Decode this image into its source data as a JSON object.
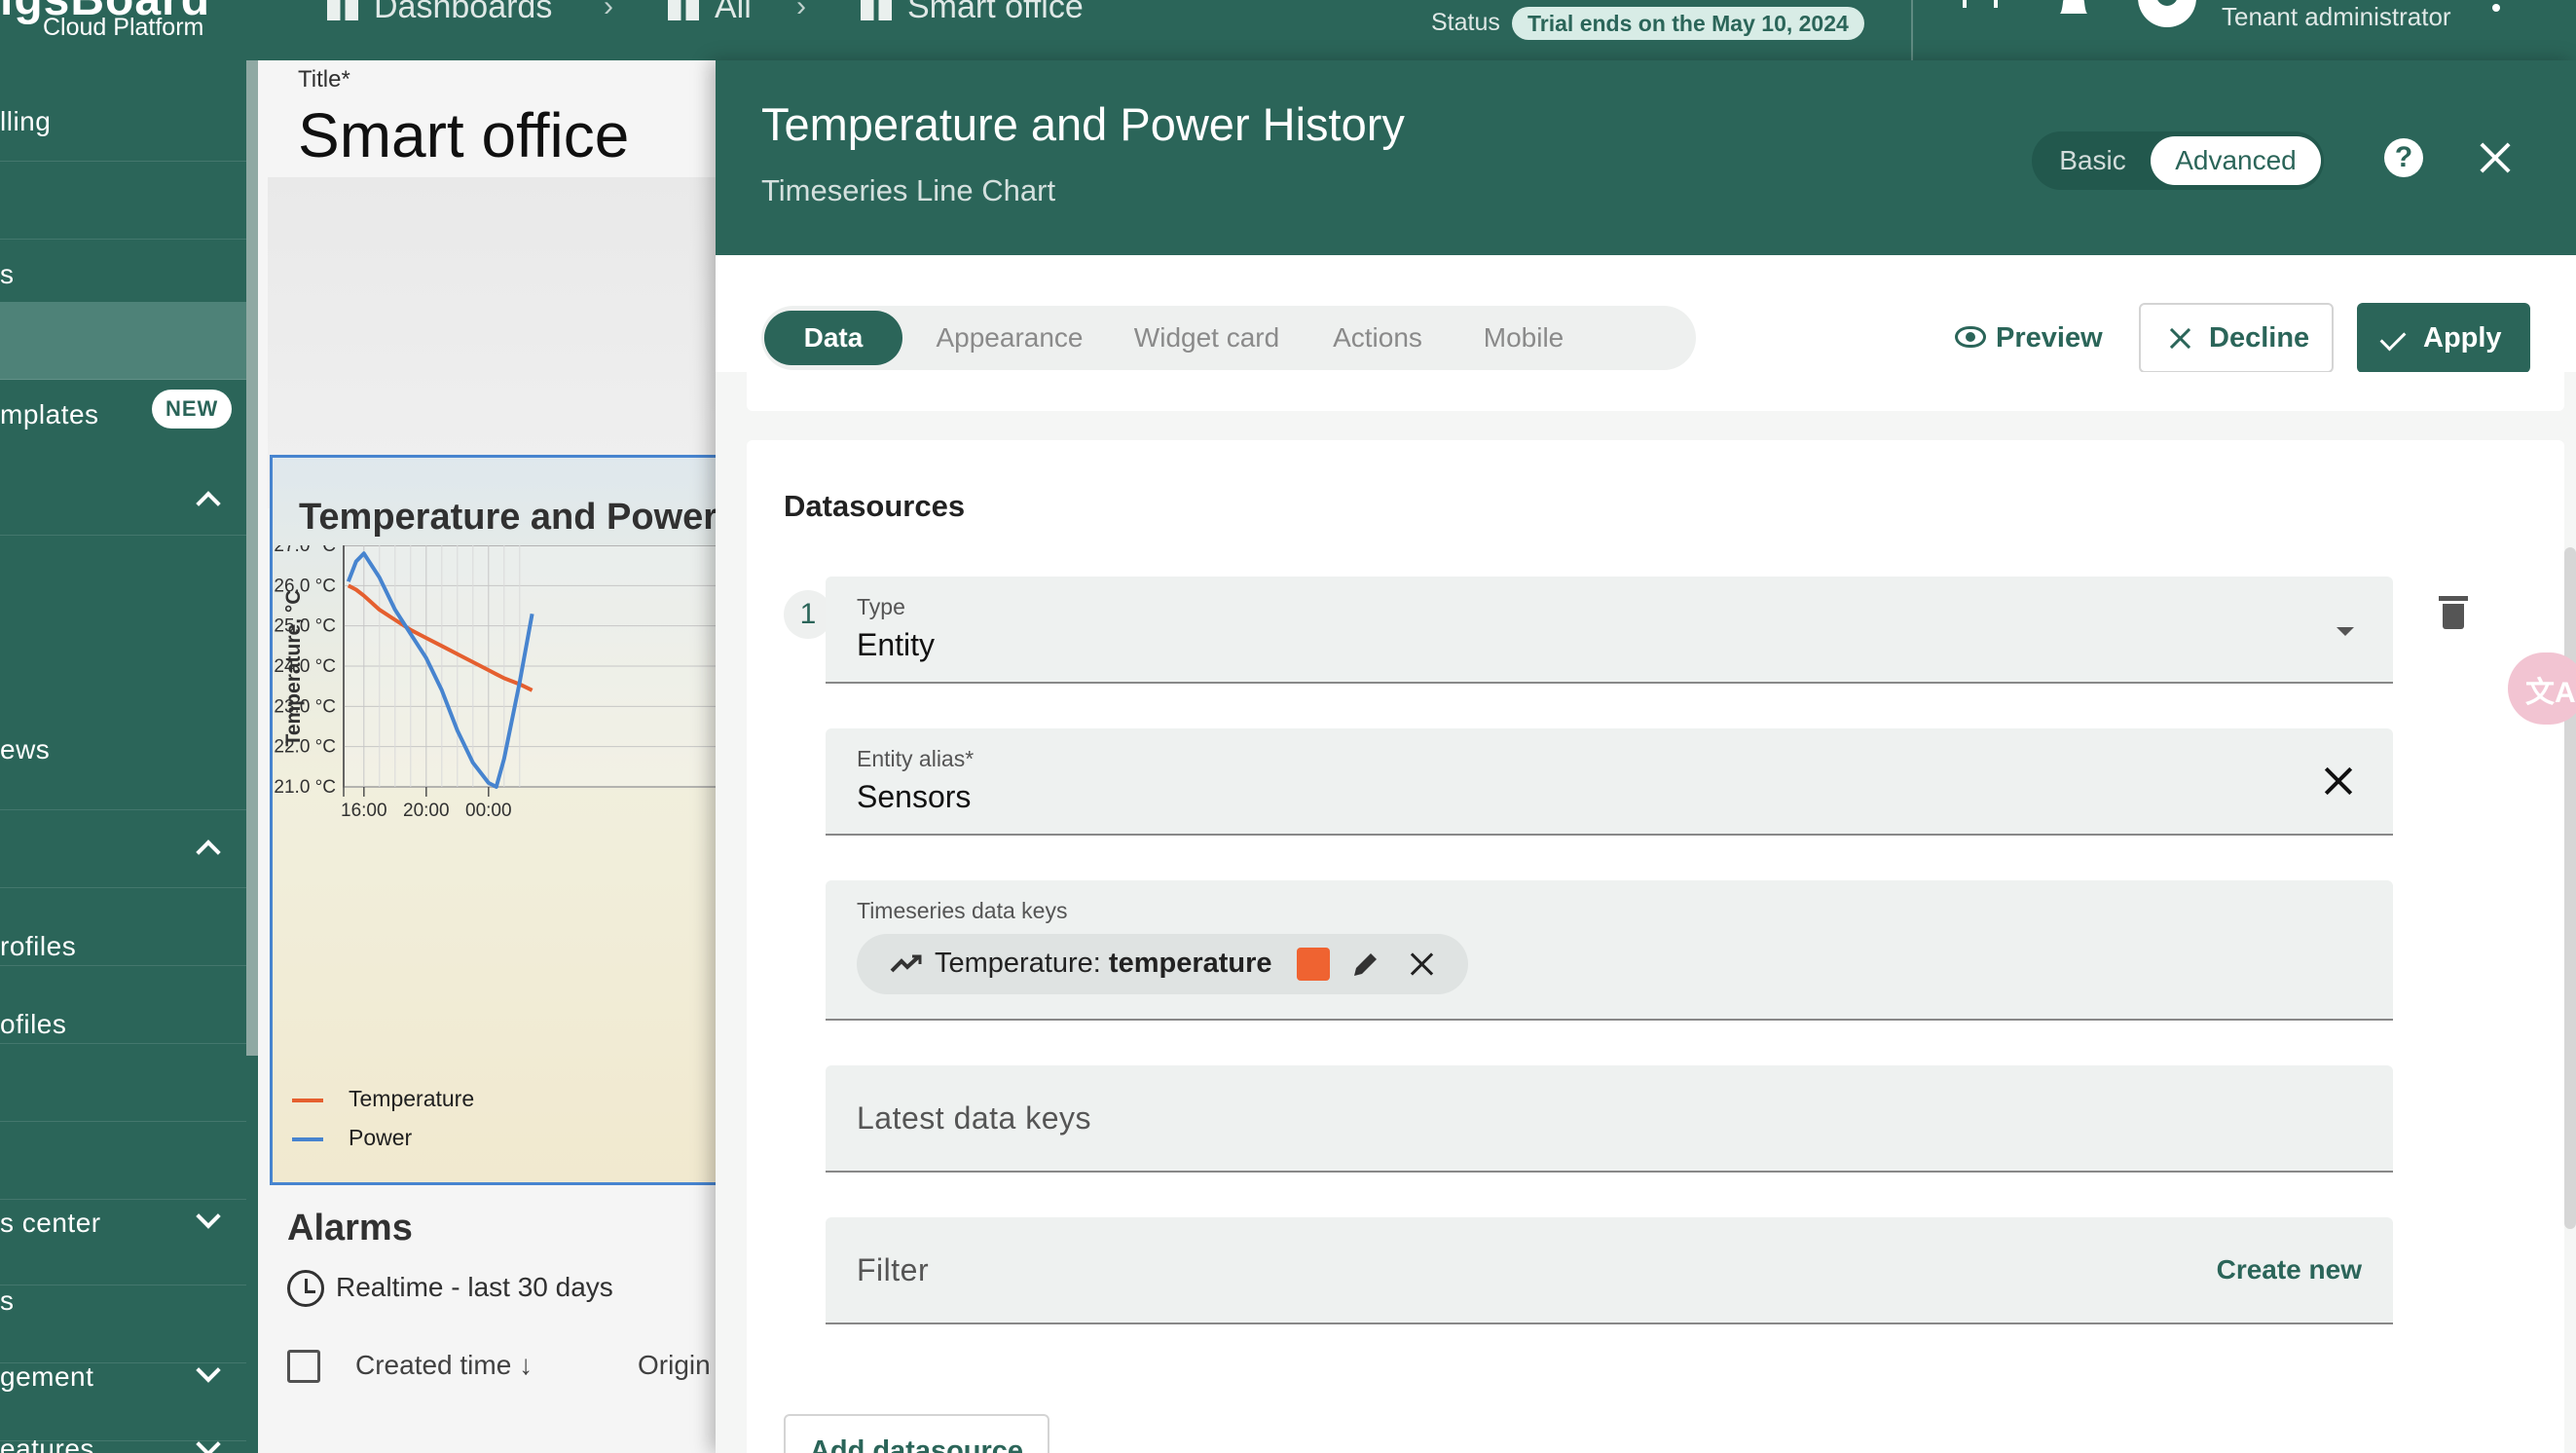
{
  "topbar": {
    "brand_text": "igsBoard",
    "brand_sub": "Cloud Platform",
    "breadcrumbs": [
      "Dashboards",
      "All",
      "Smart office"
    ],
    "status_label": "Status",
    "trial_badge": "Trial ends on the May 10, 2024",
    "user_role": "Tenant administrator",
    "icons": [
      "fullscreen-icon",
      "bell-icon",
      "account-icon",
      "more-vert-icon"
    ]
  },
  "sidebar": {
    "items": [
      {
        "label": "lling"
      },
      {
        "label": ""
      },
      {
        "label": "s"
      },
      {
        "label": "mplates",
        "badge": "NEW"
      },
      {
        "label": ""
      },
      {
        "label": ""
      },
      {
        "label": "ews"
      },
      {
        "label": ""
      },
      {
        "label": "rofiles"
      },
      {
        "label": "ofiles"
      },
      {
        "label": ""
      },
      {
        "label": ""
      },
      {
        "label": "s center"
      },
      {
        "label": "s"
      },
      {
        "label": "gement"
      },
      {
        "label": "eatures"
      }
    ],
    "new_badge": "NEW"
  },
  "dashboard": {
    "title_label": "Title*",
    "title": "Smart office",
    "widget_title": "Temperature and Power",
    "alarms_title": "Alarms",
    "realtime": "Realtime - last 30 days",
    "col_created": "Created time",
    "col_origin": "Origin",
    "legend": [
      {
        "name": "Temperature",
        "color": "#ef6331"
      },
      {
        "name": "Power",
        "color": "#4a8ad8"
      }
    ]
  },
  "chart_data": {
    "type": "line",
    "title": "Temperature and Power",
    "ylabel": "Temperature, °C",
    "y_ticks": [
      "27.0 °C",
      "26.0 °C",
      "25.0 °C",
      "24.0 °C",
      "23.0 °C",
      "22.0 °C",
      "21.0 °C"
    ],
    "x_ticks": [
      "16:00",
      "20:00",
      "00:00"
    ],
    "ylim": [
      21.0,
      27.0
    ],
    "x_hours": [
      15.0,
      15.5,
      16.0,
      17.0,
      18.0,
      19.0,
      20.0,
      21.0,
      22.0,
      23.0,
      24.0,
      24.5,
      25.0,
      26.0,
      26.8
    ],
    "series": [
      {
        "name": "Temperature",
        "color": "#ef6331",
        "values": [
          26.0,
          25.9,
          25.75,
          25.4,
          25.15,
          24.9,
          24.7,
          24.5,
          24.3,
          24.1,
          23.9,
          23.8,
          23.7,
          23.55,
          23.4
        ]
      },
      {
        "name": "Power",
        "color": "#4a8ad8",
        "values": [
          26.1,
          26.6,
          26.8,
          26.2,
          25.4,
          24.8,
          24.2,
          23.4,
          22.4,
          21.6,
          21.1,
          21.0,
          21.7,
          23.6,
          25.3
        ]
      }
    ],
    "grid": true,
    "legend_position": "bottom-left"
  },
  "editor": {
    "title": "Temperature and Power History",
    "subtitle": "Timeseries Line Chart",
    "mode_basic": "Basic",
    "mode_advanced": "Advanced",
    "help": "?",
    "tabs": [
      "Data",
      "Appearance",
      "Widget card",
      "Actions",
      "Mobile"
    ],
    "preview": "Preview",
    "decline": "Decline",
    "apply": "Apply",
    "datasources_title": "Datasources",
    "datasource_index": "1",
    "type_label": "Type",
    "type_value": "Entity",
    "alias_label": "Entity alias*",
    "alias_value": "Sensors",
    "ts_keys_label": "Timeseries data keys",
    "chip_prefix": "Temperature: ",
    "chip_key": "temperature",
    "chip_color": "#ef6331",
    "latest_keys_placeholder": "Latest data keys",
    "filter_placeholder": "Filter",
    "create_new": "Create new",
    "add_datasource": "Add datasource",
    "translate_icon": "文A"
  }
}
